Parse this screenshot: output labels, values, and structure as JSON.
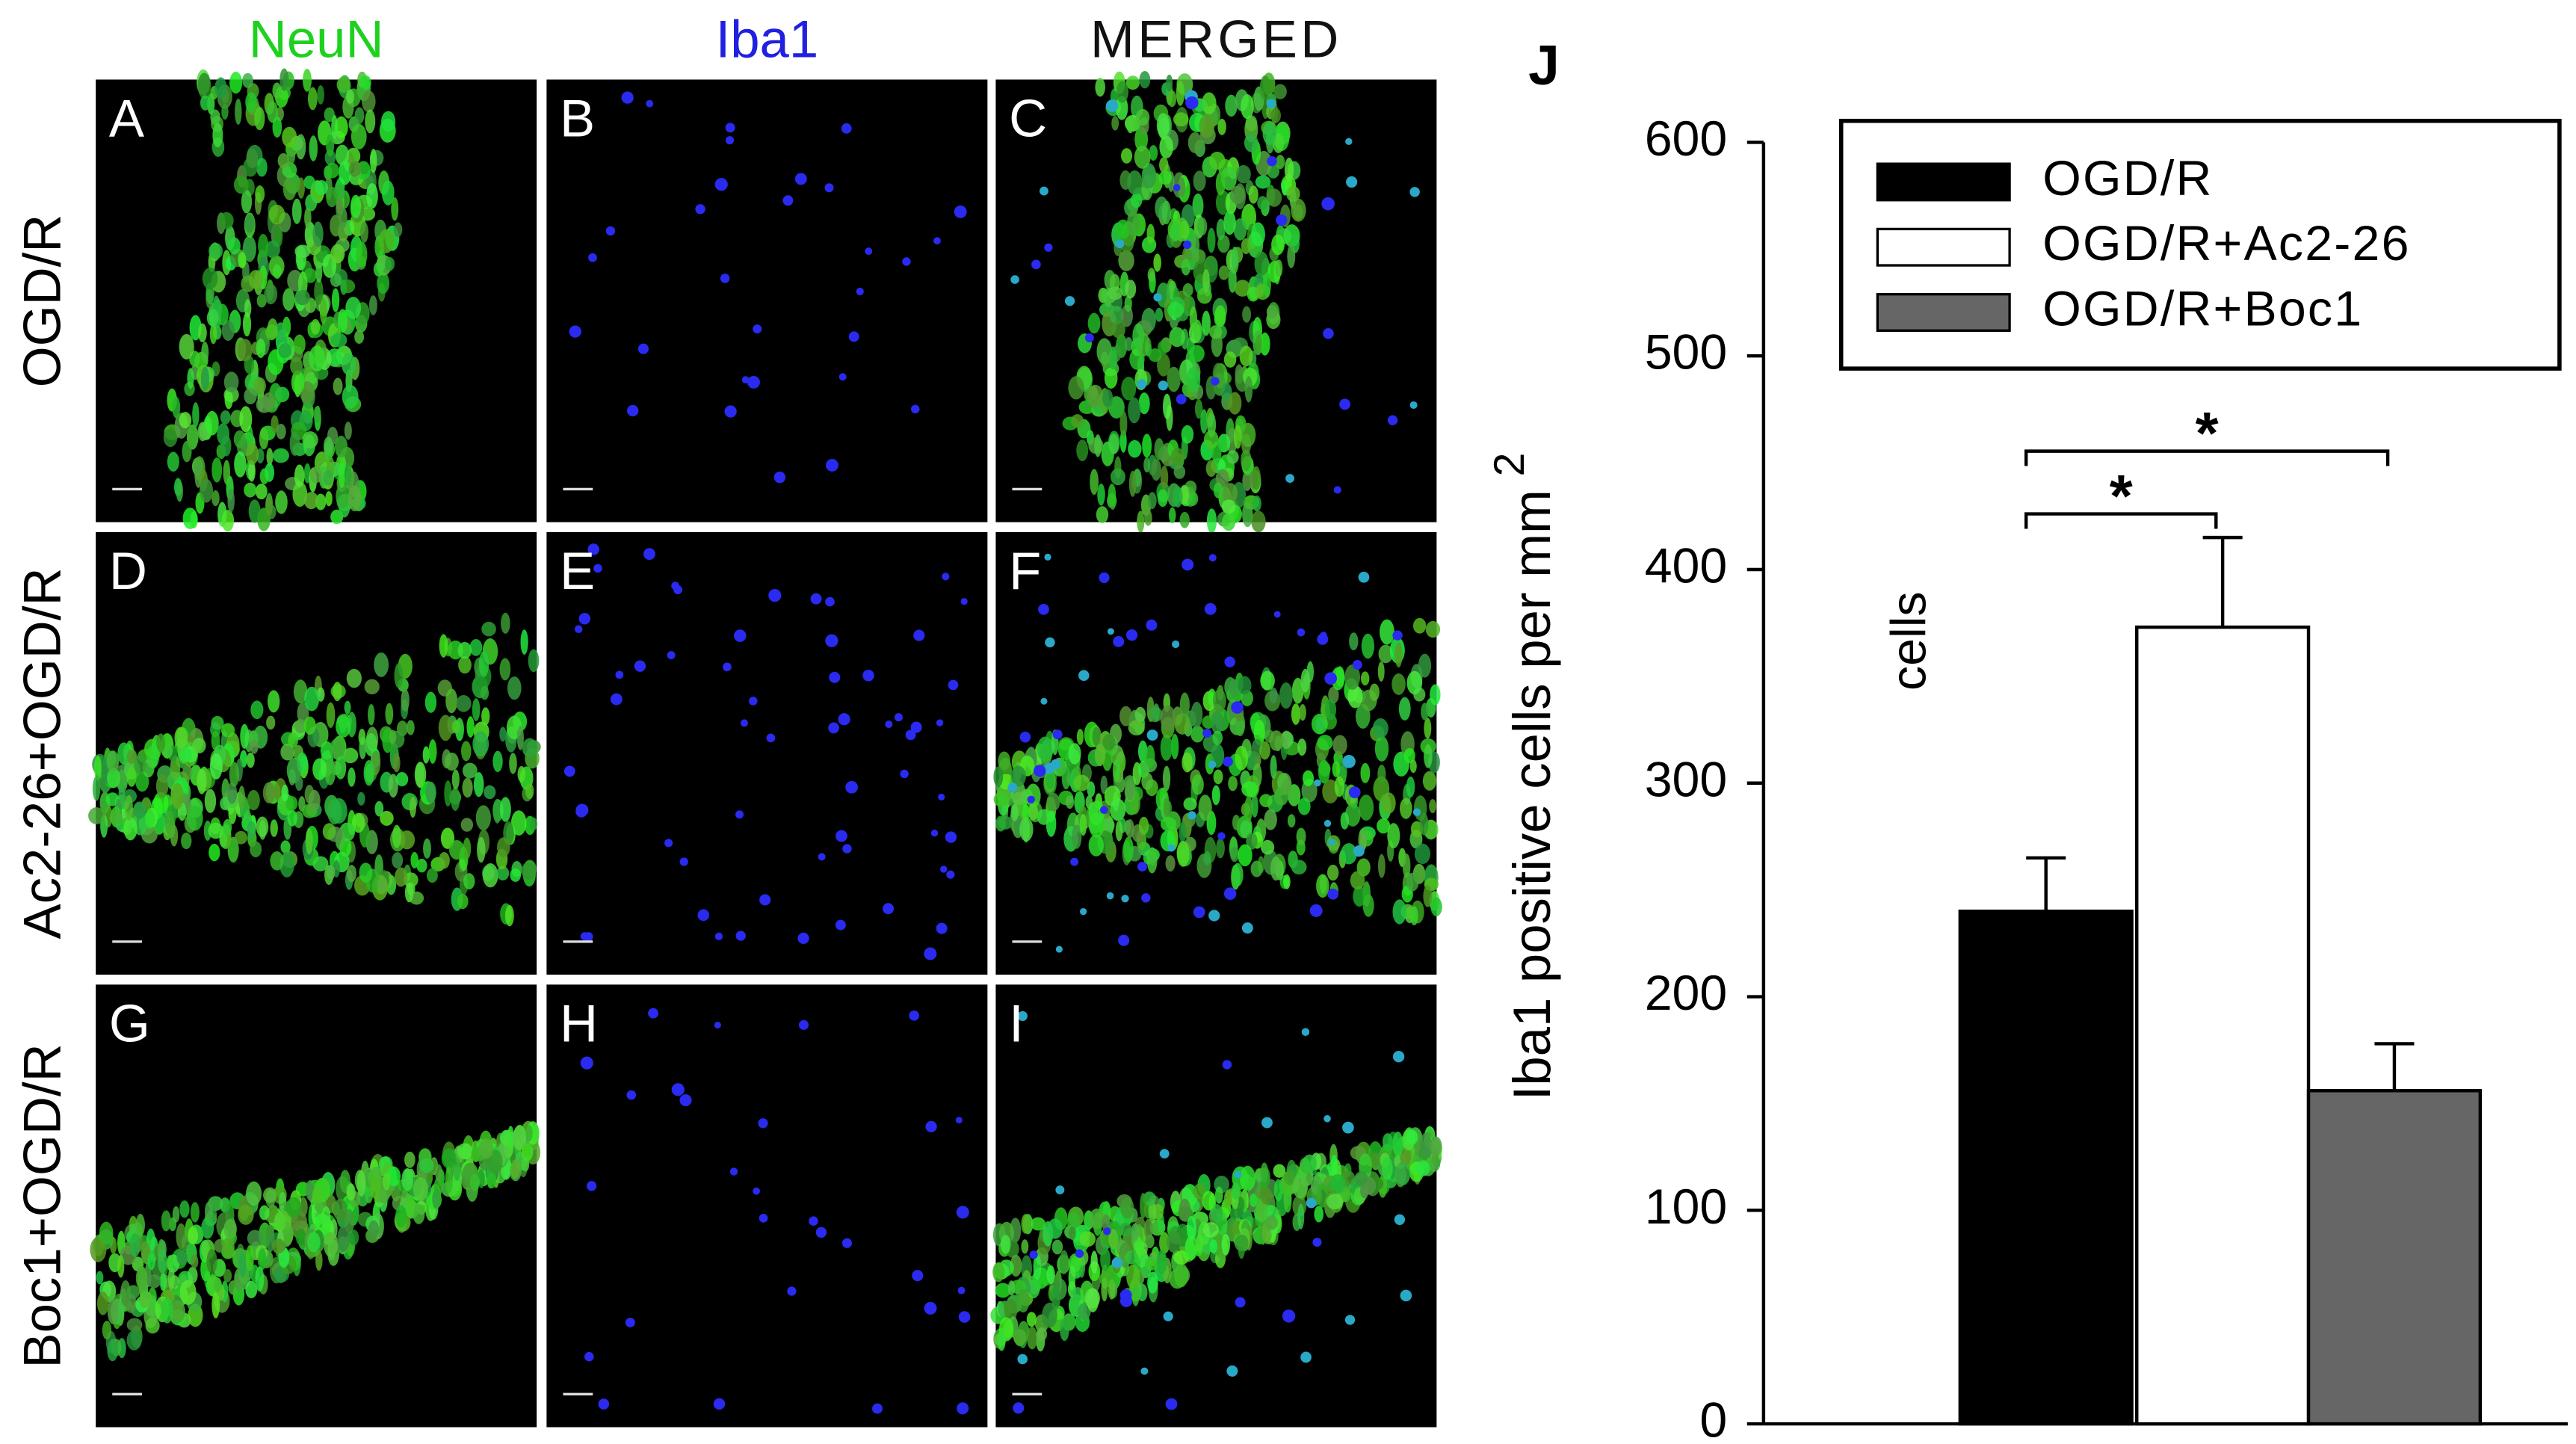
{
  "figure": {
    "columns": [
      "NeuN",
      "Iba1",
      "MERGED"
    ],
    "rows": [
      "OGD/R",
      "Ac2-26+OGD/R",
      "Boc1+OGD/R"
    ],
    "panels": [
      "A",
      "B",
      "C",
      "D",
      "E",
      "F",
      "G",
      "H",
      "I"
    ]
  },
  "chart_data": {
    "type": "bar",
    "panel": "J",
    "y_label": "Iba1 positive cells per mm",
    "y_label_sup": "2",
    "annotation": "cells",
    "ylim": [
      0,
      600
    ],
    "yticks": [
      0,
      100,
      200,
      300,
      400,
      500,
      600
    ],
    "legend": "top-right",
    "series": [
      {
        "name": "OGD/R",
        "color": "#000000",
        "values": [
          240
        ],
        "errors": [
          25
        ]
      },
      {
        "name": "OGD/R+Ac2-26",
        "color": "#ffffff",
        "values": [
          373
        ],
        "errors": [
          42
        ]
      },
      {
        "name": "OGD/R+Boc1",
        "color": "#666666",
        "values": [
          156
        ],
        "errors": [
          22
        ]
      }
    ],
    "significance": [
      "*",
      "*"
    ]
  }
}
